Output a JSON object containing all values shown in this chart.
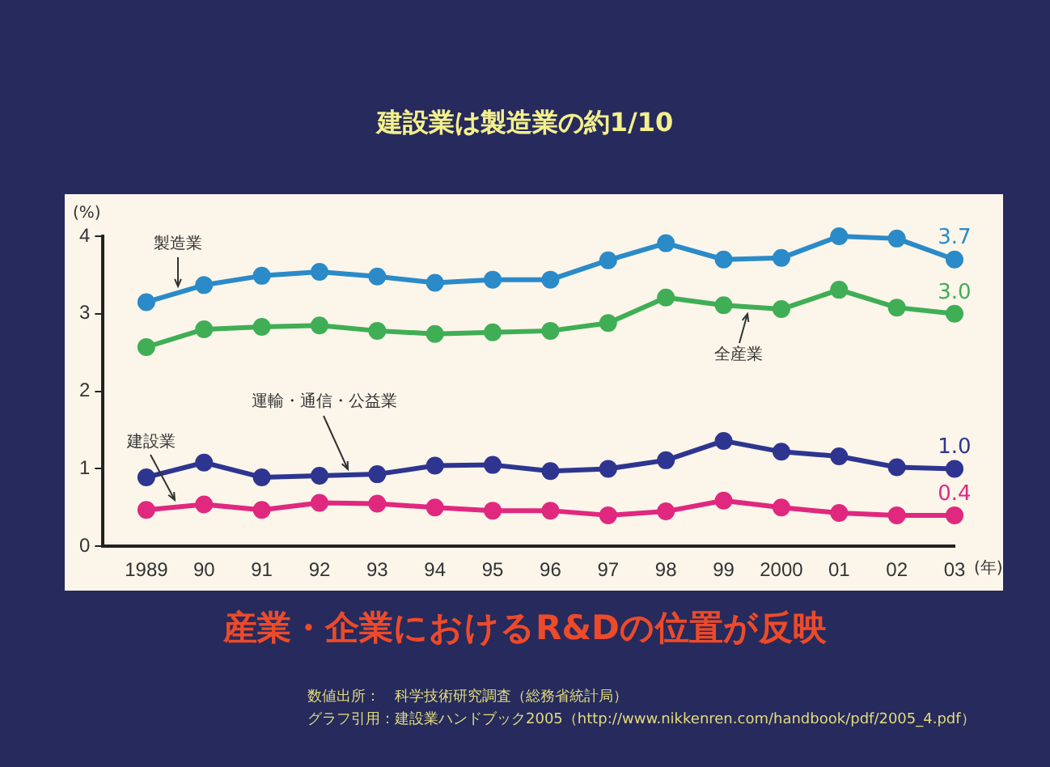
{
  "chart_data": {
    "type": "line",
    "title": "建設業は製造業の約1/10",
    "subtitle": "産業・企業におけるR&Dの位置が反映",
    "xlabel": "(年)",
    "ylabel": "(%)",
    "categories": [
      "1989",
      "90",
      "91",
      "92",
      "93",
      "94",
      "95",
      "96",
      "97",
      "98",
      "99",
      "2000",
      "01",
      "02",
      "03"
    ],
    "series": [
      {
        "name": "製造業",
        "color": "#2b8ac8",
        "values": [
          3.15,
          3.37,
          3.49,
          3.54,
          3.48,
          3.4,
          3.44,
          3.44,
          3.69,
          3.91,
          3.7,
          3.72,
          4.0,
          3.97,
          3.7
        ],
        "value_labels": [
          null,
          null,
          null,
          null,
          null,
          null,
          null,
          null,
          null,
          null,
          null,
          null,
          null,
          null,
          "3.7"
        ]
      },
      {
        "name": "全産業",
        "color": "#3fae55",
        "values": [
          2.57,
          2.8,
          2.83,
          2.85,
          2.78,
          2.74,
          2.76,
          2.78,
          2.88,
          3.21,
          3.11,
          3.06,
          3.31,
          3.08,
          3.0
        ],
        "value_labels": [
          null,
          null,
          null,
          null,
          null,
          null,
          null,
          null,
          null,
          null,
          null,
          null,
          null,
          null,
          "3.0"
        ]
      },
      {
        "name": "運輸・通信・公益業",
        "color": "#2e3590",
        "values": [
          0.89,
          1.08,
          0.89,
          0.91,
          0.93,
          1.04,
          1.05,
          0.97,
          1.0,
          1.11,
          1.36,
          1.22,
          1.16,
          1.02,
          1.0
        ],
        "value_labels": [
          null,
          null,
          null,
          null,
          null,
          null,
          null,
          null,
          null,
          null,
          null,
          null,
          null,
          null,
          "1.0"
        ]
      },
      {
        "name": "建設業",
        "color": "#e0287f",
        "values": [
          0.47,
          0.54,
          0.47,
          0.56,
          0.55,
          0.5,
          0.46,
          0.46,
          0.4,
          0.45,
          0.59,
          0.5,
          0.43,
          0.4,
          0.4
        ],
        "value_labels": [
          null,
          null,
          null,
          null,
          null,
          null,
          null,
          null,
          null,
          null,
          null,
          null,
          null,
          null,
          "0.4"
        ]
      }
    ],
    "ylim": [
      0,
      4
    ],
    "yticks": [
      0,
      1,
      2,
      3,
      4
    ],
    "grid": false,
    "legend": false,
    "marker": "circle",
    "line_style": "solid",
    "annotations": [
      "数値出所：　科学技術研究調査（総務省統計局）",
      "グラフ引用：建設業ハンドブック2005（http://www.nikkenren.com/handbook/pdf/2005_4.pdf）"
    ]
  }
}
